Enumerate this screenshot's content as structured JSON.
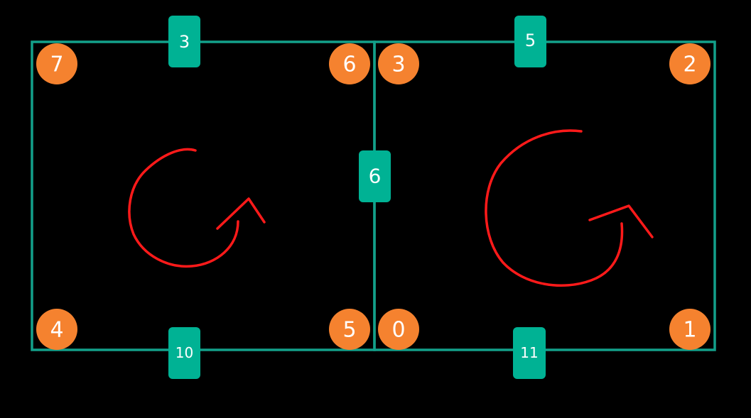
{
  "colors": {
    "background": "#000000",
    "edge": "#13a08a",
    "edge_badge": "#00b294",
    "vertex": "#f5822f",
    "arrow": "#ff1a1a",
    "label_text": "#ffffff"
  },
  "vertices": [
    {
      "id": "v7",
      "label": "7"
    },
    {
      "id": "v6",
      "label": "6"
    },
    {
      "id": "v3",
      "label": "3"
    },
    {
      "id": "v2",
      "label": "2"
    },
    {
      "id": "v4",
      "label": "4"
    },
    {
      "id": "v5",
      "label": "5"
    },
    {
      "id": "v0",
      "label": "0"
    },
    {
      "id": "v1",
      "label": "1"
    }
  ],
  "edges": [
    {
      "id": "e-top-left",
      "label": "3"
    },
    {
      "id": "e-top-right",
      "label": "5"
    },
    {
      "id": "e-middle",
      "label": "6"
    },
    {
      "id": "e-bottom-left",
      "label": "10"
    },
    {
      "id": "e-bottom-right",
      "label": "11"
    }
  ],
  "faces": [
    {
      "id": "left-face",
      "orientation": "counterclockwise"
    },
    {
      "id": "right-face",
      "orientation": "counterclockwise"
    }
  ]
}
